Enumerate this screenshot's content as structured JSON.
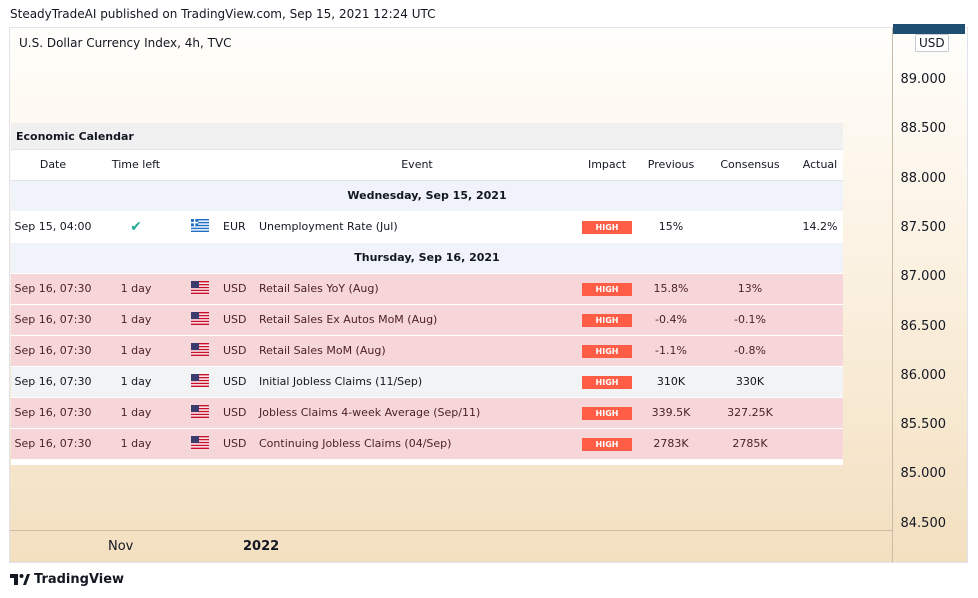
{
  "header": {
    "published": "SteadyTradeAI published on TradingView.com, Sep 15, 2021 12:24 UTC"
  },
  "chart": {
    "symbol_title": "U.S. Dollar Currency Index, 4h, TVC",
    "price_unit": "USD",
    "price_ticks": [
      "89.000",
      "88.500",
      "88.000",
      "87.500",
      "87.000",
      "86.500",
      "86.000",
      "85.500",
      "85.000",
      "84.500"
    ],
    "time_labels": [
      "Nov",
      "2022"
    ],
    "colors": {
      "price_tag": "#1e4f73",
      "impact_high": "#ff5d45",
      "high_row": "#f7d6da",
      "check": "#22ab94"
    }
  },
  "calendar": {
    "title": "Economic Calendar",
    "columns": [
      "Date",
      "Time left",
      "",
      "",
      "Event",
      "Impact",
      "Previous",
      "Consensus",
      "Actual"
    ],
    "days": [
      {
        "label": "Wednesday, Sep 15, 2021",
        "events": [
          {
            "date": "Sep 15, 04:00",
            "time_left": "",
            "done": true,
            "flag": "gr",
            "currency": "EUR",
            "event": "Unemployment Rate (Jul)",
            "impact": "HIGH",
            "previous": "15%",
            "consensus": "",
            "actual": "14.2%",
            "style": "today"
          }
        ]
      },
      {
        "label": "Thursday, Sep 16, 2021",
        "events": [
          {
            "date": "Sep 16, 07:30",
            "time_left": "1 day",
            "done": false,
            "flag": "us",
            "currency": "USD",
            "event": "Retail Sales YoY (Aug)",
            "impact": "HIGH",
            "previous": "15.8%",
            "consensus": "13%",
            "actual": "",
            "style": "high"
          },
          {
            "date": "Sep 16, 07:30",
            "time_left": "1 day",
            "done": false,
            "flag": "us",
            "currency": "USD",
            "event": "Retail Sales Ex Autos MoM (Aug)",
            "impact": "HIGH",
            "previous": "-0.4%",
            "consensus": "-0.1%",
            "actual": "",
            "style": "high"
          },
          {
            "date": "Sep 16, 07:30",
            "time_left": "1 day",
            "done": false,
            "flag": "us",
            "currency": "USD",
            "event": "Retail Sales MoM (Aug)",
            "impact": "HIGH",
            "previous": "-1.1%",
            "consensus": "-0.8%",
            "actual": "",
            "style": "high"
          },
          {
            "date": "Sep 16, 07:30",
            "time_left": "1 day",
            "done": false,
            "flag": "us",
            "currency": "USD",
            "event": "Initial Jobless Claims (11/Sep)",
            "impact": "HIGH",
            "previous": "310K",
            "consensus": "330K",
            "actual": "",
            "style": "normal"
          },
          {
            "date": "Sep 16, 07:30",
            "time_left": "1 day",
            "done": false,
            "flag": "us",
            "currency": "USD",
            "event": "Jobless Claims 4-week Average (Sep/11)",
            "impact": "HIGH",
            "previous": "339.5K",
            "consensus": "327.25K",
            "actual": "",
            "style": "high"
          },
          {
            "date": "Sep 16, 07:30",
            "time_left": "1 day",
            "done": false,
            "flag": "us",
            "currency": "USD",
            "event": "Continuing Jobless Claims (04/Sep)",
            "impact": "HIGH",
            "previous": "2783K",
            "consensus": "2785K",
            "actual": "",
            "style": "high"
          }
        ]
      }
    ]
  },
  "footer": {
    "brand": "TradingView"
  }
}
